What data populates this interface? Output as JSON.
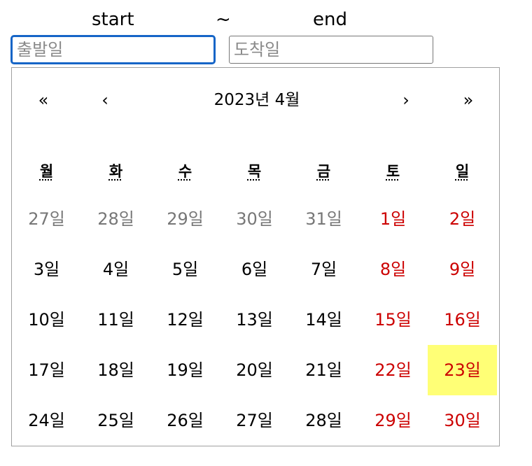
{
  "range": {
    "start_label": "start",
    "separator": "~",
    "end_label": "end"
  },
  "inputs": {
    "start_placeholder": "출발일",
    "end_placeholder": "도착일"
  },
  "calendar": {
    "title": "2023년 4월",
    "nav": {
      "prev_year": "«",
      "prev_month": "‹",
      "next_month": "›",
      "next_year": "»"
    },
    "weekdays": [
      "월",
      "화",
      "수",
      "목",
      "금",
      "토",
      "일"
    ],
    "weeks": [
      [
        {
          "label": "27일",
          "state": "neighbor"
        },
        {
          "label": "28일",
          "state": "neighbor"
        },
        {
          "label": "29일",
          "state": "neighbor"
        },
        {
          "label": "30일",
          "state": "neighbor"
        },
        {
          "label": "31일",
          "state": "neighbor"
        },
        {
          "label": "1일",
          "state": "weekend"
        },
        {
          "label": "2일",
          "state": "weekend"
        }
      ],
      [
        {
          "label": "3일",
          "state": "normal"
        },
        {
          "label": "4일",
          "state": "normal"
        },
        {
          "label": "5일",
          "state": "normal"
        },
        {
          "label": "6일",
          "state": "normal"
        },
        {
          "label": "7일",
          "state": "normal"
        },
        {
          "label": "8일",
          "state": "weekend"
        },
        {
          "label": "9일",
          "state": "weekend"
        }
      ],
      [
        {
          "label": "10일",
          "state": "normal"
        },
        {
          "label": "11일",
          "state": "normal"
        },
        {
          "label": "12일",
          "state": "normal"
        },
        {
          "label": "13일",
          "state": "normal"
        },
        {
          "label": "14일",
          "state": "normal"
        },
        {
          "label": "15일",
          "state": "weekend"
        },
        {
          "label": "16일",
          "state": "weekend"
        }
      ],
      [
        {
          "label": "17일",
          "state": "normal"
        },
        {
          "label": "18일",
          "state": "normal"
        },
        {
          "label": "19일",
          "state": "normal"
        },
        {
          "label": "20일",
          "state": "normal"
        },
        {
          "label": "21일",
          "state": "normal"
        },
        {
          "label": "22일",
          "state": "weekend"
        },
        {
          "label": "23일",
          "state": "weekend-selected"
        }
      ],
      [
        {
          "label": "24일",
          "state": "normal"
        },
        {
          "label": "25일",
          "state": "normal"
        },
        {
          "label": "26일",
          "state": "normal"
        },
        {
          "label": "27일",
          "state": "normal"
        },
        {
          "label": "28일",
          "state": "normal"
        },
        {
          "label": "29일",
          "state": "weekend"
        },
        {
          "label": "30일",
          "state": "weekend"
        }
      ]
    ]
  },
  "colors": {
    "weekend": "#cc0000",
    "neighbor_month": "#777777",
    "selected_bg": "#ffff76",
    "focus_border": "#1665c7"
  }
}
